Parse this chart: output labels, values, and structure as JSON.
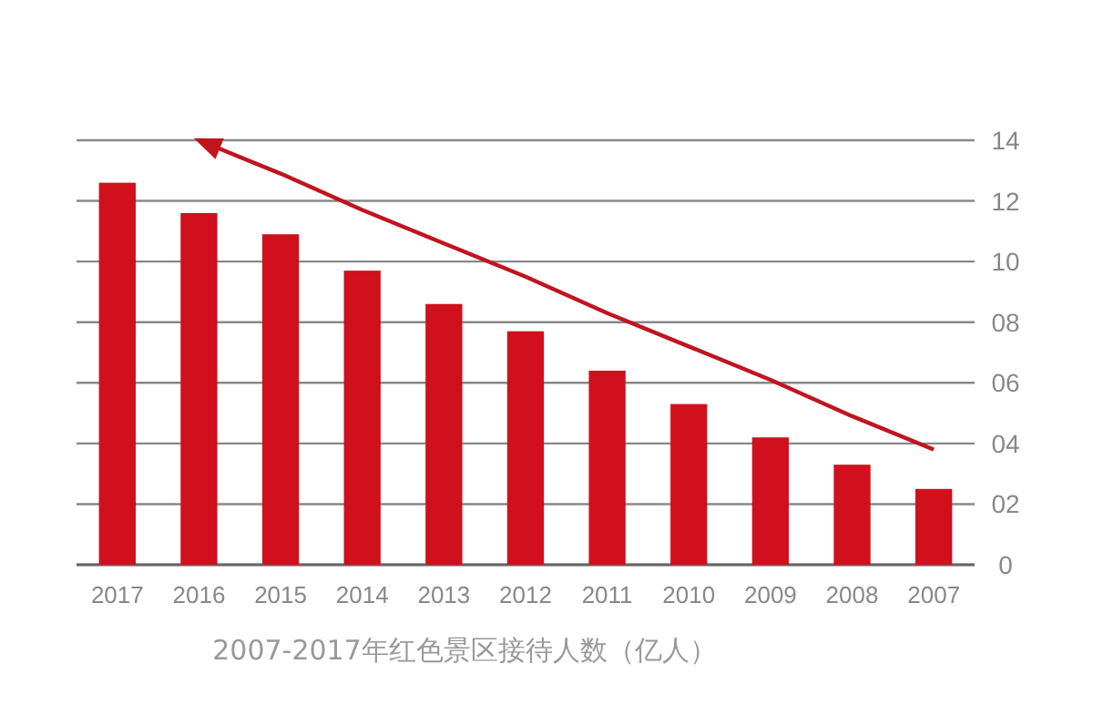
{
  "chart_data": {
    "type": "bar",
    "categories": [
      "2017",
      "2016",
      "2015",
      "2014",
      "2013",
      "2012",
      "2011",
      "2010",
      "2009",
      "2008",
      "2007"
    ],
    "series": [
      {
        "color": "#d0101c",
        "values": [
          12.6,
          11.6,
          10.9,
          9.7,
          8.6,
          7.7,
          6.4,
          5.3,
          4.2,
          3.3,
          2.5
        ]
      },
      {
        "type": "line",
        "color": "#c0141e",
        "values": [
          null,
          14.0,
          12.9,
          11.7,
          10.6,
          9.5,
          8.3,
          7.2,
          6.1,
          4.9,
          3.8
        ]
      }
    ],
    "ylim": [
      0,
      14
    ],
    "yticks": [
      0,
      {
        "value": 2,
        "label": "02"
      },
      {
        "value": 4,
        "label": "04"
      },
      {
        "value": 6,
        "label": "06"
      },
      {
        "value": 8,
        "label": "08"
      },
      10,
      12,
      14
    ],
    "grid": "y",
    "annotations": [
      "2007-2017年红色景区接待人数（亿人）"
    ]
  }
}
